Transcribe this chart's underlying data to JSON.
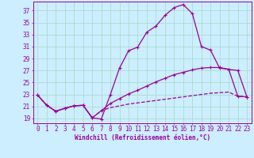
{
  "xlabel": "Windchill (Refroidissement éolien,°C)",
  "bg_color": "#cceeff",
  "grid_color": "#aaddcc",
  "line_color": "#990099",
  "x_ticks": [
    0,
    1,
    2,
    3,
    4,
    5,
    6,
    7,
    8,
    9,
    10,
    11,
    12,
    13,
    14,
    15,
    16,
    17,
    18,
    19,
    20,
    21,
    22,
    23
  ],
  "y_ticks": [
    19,
    21,
    23,
    25,
    27,
    29,
    31,
    33,
    35,
    37
  ],
  "xlim": [
    -0.5,
    23.5
  ],
  "ylim": [
    18.2,
    38.5
  ],
  "line1_x": [
    0,
    1,
    2,
    3,
    4,
    5,
    6,
    7,
    8,
    9,
    10,
    11,
    12,
    13,
    14,
    15,
    16,
    17,
    18,
    19,
    20,
    21,
    22,
    23
  ],
  "line1_y": [
    22.9,
    21.2,
    20.2,
    20.7,
    21.1,
    21.2,
    19.1,
    18.9,
    23.0,
    27.4,
    30.3,
    30.9,
    33.4,
    34.4,
    36.2,
    37.5,
    38.0,
    36.5,
    31.0,
    30.4,
    27.4,
    27.2,
    27.0,
    22.6
  ],
  "line2_x": [
    0,
    1,
    2,
    3,
    4,
    5,
    6,
    7,
    8,
    9,
    10,
    11,
    12,
    13,
    14,
    15,
    16,
    17,
    18,
    19,
    20,
    21,
    22,
    23
  ],
  "line2_y": [
    22.9,
    21.2,
    20.2,
    20.7,
    21.1,
    21.2,
    19.1,
    20.3,
    21.5,
    22.3,
    23.1,
    23.7,
    24.4,
    25.1,
    25.7,
    26.3,
    26.7,
    27.1,
    27.4,
    27.5,
    27.5,
    27.2,
    22.7,
    22.6
  ],
  "line3_x": [
    0,
    1,
    2,
    3,
    4,
    5,
    6,
    7,
    8,
    9,
    10,
    11,
    12,
    13,
    14,
    15,
    16,
    17,
    18,
    19,
    20,
    21,
    22,
    23
  ],
  "line3_y": [
    22.9,
    21.2,
    20.2,
    20.7,
    21.1,
    21.2,
    19.1,
    20.3,
    20.8,
    21.1,
    21.4,
    21.6,
    21.8,
    22.0,
    22.2,
    22.4,
    22.6,
    22.8,
    23.0,
    23.2,
    23.3,
    23.4,
    22.7,
    22.6
  ],
  "tick_fontsize": 5.5,
  "xlabel_fontsize": 5.5
}
